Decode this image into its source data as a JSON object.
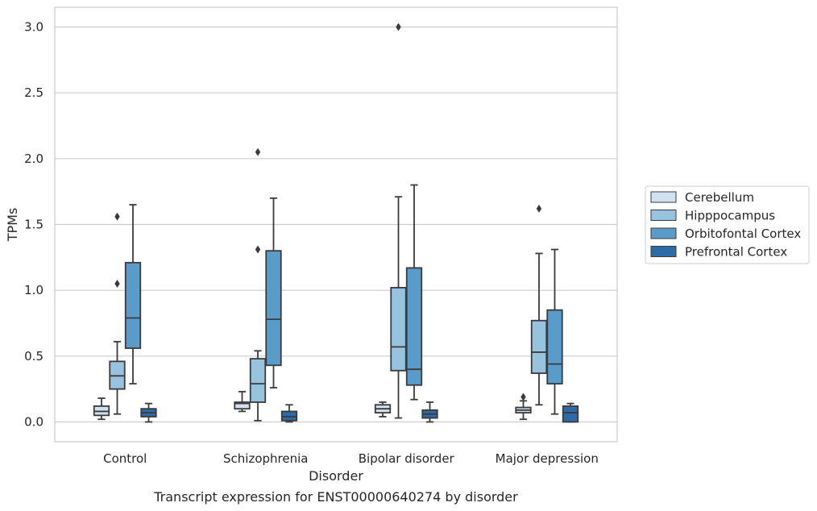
{
  "caption": "Transcript expression for ENST00000640274 by disorder",
  "chart_data": {
    "type": "box",
    "xlabel": "Disorder",
    "ylabel": "TPMs",
    "ylim": [
      -0.15,
      3.15
    ],
    "yticks": [
      "0.0",
      "0.5",
      "1.0",
      "1.5",
      "2.0",
      "2.5",
      "3.0"
    ],
    "categories": [
      "Control",
      "Schizophrenia",
      "Bipolar disorder",
      "Major depression"
    ],
    "grid": true,
    "legend_position": "right",
    "series": [
      {
        "name": "Cerebellum",
        "color": "#d1e1f0",
        "boxes": [
          {
            "whislo": 0.02,
            "q1": 0.05,
            "med": 0.08,
            "q3": 0.12,
            "whishi": 0.18,
            "fliers": []
          },
          {
            "whislo": 0.08,
            "q1": 0.1,
            "med": 0.14,
            "q3": 0.15,
            "whishi": 0.23,
            "fliers": []
          },
          {
            "whislo": 0.04,
            "q1": 0.07,
            "med": 0.1,
            "q3": 0.13,
            "whishi": 0.15,
            "fliers": []
          },
          {
            "whislo": 0.02,
            "q1": 0.07,
            "med": 0.09,
            "q3": 0.11,
            "whishi": 0.16,
            "fliers": [
              0.19
            ]
          }
        ]
      },
      {
        "name": "Hipppocampus",
        "color": "#97c3df",
        "boxes": [
          {
            "whislo": 0.06,
            "q1": 0.25,
            "med": 0.35,
            "q3": 0.46,
            "whishi": 0.61,
            "fliers": [
              1.05,
              1.56
            ]
          },
          {
            "whislo": 0.01,
            "q1": 0.15,
            "med": 0.29,
            "q3": 0.48,
            "whishi": 0.54,
            "fliers": [
              1.31,
              2.05
            ]
          },
          {
            "whislo": 0.03,
            "q1": 0.39,
            "med": 0.57,
            "q3": 1.02,
            "whishi": 1.71,
            "fliers": [
              3.0
            ]
          },
          {
            "whislo": 0.13,
            "q1": 0.37,
            "med": 0.53,
            "q3": 0.77,
            "whishi": 1.28,
            "fliers": [
              1.62
            ]
          }
        ]
      },
      {
        "name": "Orbitofontal Cortex",
        "color": "#5a9cc9",
        "boxes": [
          {
            "whislo": 0.29,
            "q1": 0.56,
            "med": 0.79,
            "q3": 1.21,
            "whishi": 1.65,
            "fliers": []
          },
          {
            "whislo": 0.26,
            "q1": 0.43,
            "med": 0.78,
            "q3": 1.3,
            "whishi": 1.7,
            "fliers": []
          },
          {
            "whislo": 0.17,
            "q1": 0.28,
            "med": 0.4,
            "q3": 1.17,
            "whishi": 1.8,
            "fliers": []
          },
          {
            "whislo": 0.06,
            "q1": 0.29,
            "med": 0.44,
            "q3": 0.85,
            "whishi": 1.31,
            "fliers": []
          }
        ]
      },
      {
        "name": "Prefrontal Cortex",
        "color": "#2c6aa8",
        "boxes": [
          {
            "whislo": 0.0,
            "q1": 0.04,
            "med": 0.07,
            "q3": 0.1,
            "whishi": 0.14,
            "fliers": []
          },
          {
            "whislo": 0.0,
            "q1": 0.01,
            "med": 0.04,
            "q3": 0.08,
            "whishi": 0.13,
            "fliers": []
          },
          {
            "whislo": 0.0,
            "q1": 0.03,
            "med": 0.06,
            "q3": 0.09,
            "whishi": 0.15,
            "fliers": []
          },
          {
            "whislo": 0.0,
            "q1": 0.0,
            "med": 0.07,
            "q3": 0.12,
            "whishi": 0.14,
            "fliers": []
          }
        ]
      }
    ]
  }
}
